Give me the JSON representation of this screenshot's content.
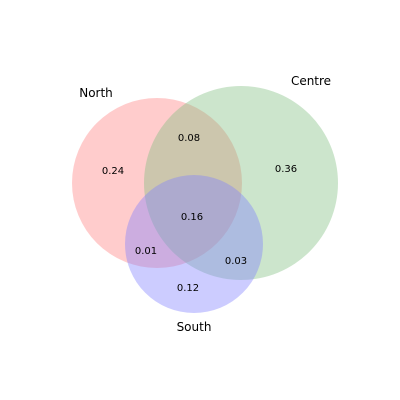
{
  "chart_data": {
    "type": "venn",
    "sets": [
      {
        "key": "north",
        "name": "North",
        "color": "#ff7f7f"
      },
      {
        "key": "centre",
        "name": "Centre",
        "color": "#7fbf7f"
      },
      {
        "key": "south",
        "name": "South",
        "color": "#7f7fff"
      }
    ],
    "regions": {
      "north_only": "0.24",
      "centre_only": "0.36",
      "south_only": "0.12",
      "north_centre": "0.08",
      "north_south": "0.01",
      "centre_south": "0.03",
      "all": "0.16"
    },
    "region_values": {
      "north_only": 0.24,
      "centre_only": 0.36,
      "south_only": 0.12,
      "north_centre": 0.08,
      "north_south": 0.01,
      "centre_south": 0.03,
      "all": 0.16
    },
    "fill_opacity": 0.4
  }
}
